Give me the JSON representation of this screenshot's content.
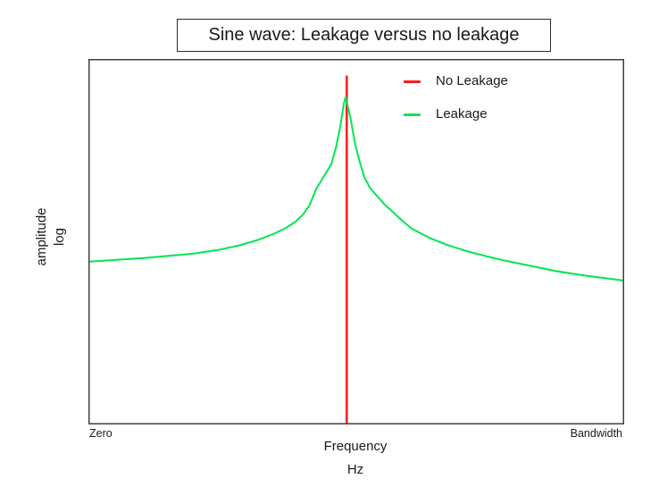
{
  "title": "Sine wave: Leakage versus no leakage",
  "legend": [
    {
      "label": "No Leakage",
      "color": "#fb1c1c"
    },
    {
      "label": "Leakage",
      "color": "#00e64f"
    }
  ],
  "axes": {
    "y_label_line1": "amplitude",
    "y_label_line2": "log",
    "x_left_label": "Zero",
    "x_right_label": "Bandwidth",
    "x_title": "Frequency",
    "x_unit": "Hz"
  },
  "colors": {
    "background": "#ffffff",
    "plot_border": "#3f3f3f",
    "text": "#1a1a1a",
    "no_leakage": "#fb1c1c",
    "leakage": "#00e64f"
  },
  "chart_data": {
    "type": "line",
    "title": "Sine wave: Leakage versus no leakage",
    "xlabel": "Frequency (Hz), from Zero to Bandwidth",
    "ylabel": "amplitude (log scale)",
    "x_range_labels": [
      "Zero",
      "Bandwidth"
    ],
    "xlim": [
      0,
      1
    ],
    "ylim": [
      0,
      1
    ],
    "grid": false,
    "ticks": "none",
    "legend_position": "top-right-inside",
    "peak_frequency_normalized": 0.481,
    "series": [
      {
        "name": "No Leakage",
        "color": "#fb1c1c",
        "width": 2.5,
        "shape": "vertical-spike",
        "points": [
          [
            0.482,
            0.0
          ],
          [
            0.482,
            0.958
          ]
        ]
      },
      {
        "name": "Leakage",
        "color": "#00e64f",
        "width": 2,
        "shape": "leakage-skirt",
        "points": [
          [
            0.0,
            0.445
          ],
          [
            0.05,
            0.45
          ],
          [
            0.102,
            0.455
          ],
          [
            0.15,
            0.461
          ],
          [
            0.194,
            0.467
          ],
          [
            0.24,
            0.477
          ],
          [
            0.278,
            0.489
          ],
          [
            0.313,
            0.504
          ],
          [
            0.344,
            0.521
          ],
          [
            0.368,
            0.538
          ],
          [
            0.386,
            0.555
          ],
          [
            0.4,
            0.575
          ],
          [
            0.412,
            0.6
          ],
          [
            0.425,
            0.646
          ],
          [
            0.44,
            0.682
          ],
          [
            0.453,
            0.713
          ],
          [
            0.462,
            0.76
          ],
          [
            0.47,
            0.818
          ],
          [
            0.4766,
            0.88
          ],
          [
            0.48,
            0.899
          ],
          [
            0.483,
            0.88
          ],
          [
            0.485,
            0.867
          ],
          [
            0.49,
            0.835
          ],
          [
            0.494,
            0.8
          ],
          [
            0.498,
            0.769
          ],
          [
            0.506,
            0.722
          ],
          [
            0.515,
            0.678
          ],
          [
            0.525,
            0.65
          ],
          [
            0.537,
            0.629
          ],
          [
            0.553,
            0.603
          ],
          [
            0.57,
            0.58
          ],
          [
            0.587,
            0.557
          ],
          [
            0.604,
            0.536
          ],
          [
            0.638,
            0.51
          ],
          [
            0.671,
            0.491
          ],
          [
            0.705,
            0.475
          ],
          [
            0.738,
            0.462
          ],
          [
            0.772,
            0.45
          ],
          [
            0.805,
            0.44
          ],
          [
            0.838,
            0.43
          ],
          [
            0.871,
            0.42
          ],
          [
            0.905,
            0.412
          ],
          [
            0.938,
            0.405
          ],
          [
            0.97,
            0.399
          ],
          [
            1.0,
            0.393
          ]
        ]
      }
    ]
  }
}
